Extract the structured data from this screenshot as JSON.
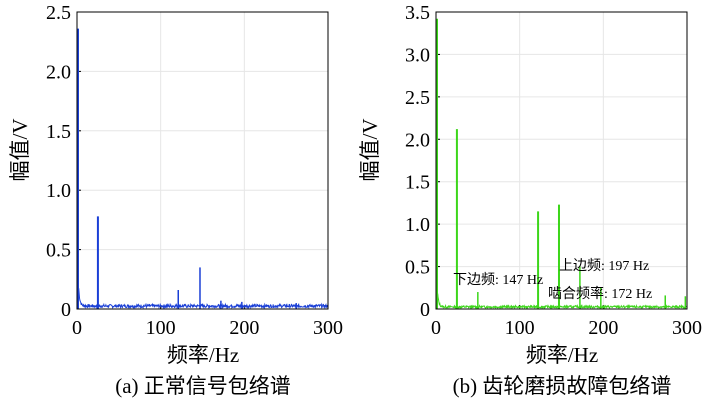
{
  "chart_data": [
    {
      "type": "line",
      "caption": "(a) 正常信号包络谱",
      "xlabel": "频率/Hz",
      "ylabel": "幅值/V",
      "xlim": [
        0,
        300
      ],
      "ylim": [
        0,
        2.5
      ],
      "xticks": [
        "0",
        "100",
        "200",
        "300"
      ],
      "yticks": [
        "0",
        "0.5",
        "1.0",
        "1.5",
        "2.0",
        "2.5"
      ],
      "grid": true,
      "color": "#1a3fd6",
      "noise_floor": 0.03,
      "peaks": [
        {
          "x": 0,
          "y": 2.36
        },
        {
          "x": 25,
          "y": 0.78
        },
        {
          "x": 121,
          "y": 0.16
        },
        {
          "x": 147,
          "y": 0.35
        },
        {
          "x": 172,
          "y": 0.07
        },
        {
          "x": 197,
          "y": 0.06
        },
        {
          "x": 262,
          "y": 0.05
        }
      ],
      "annotations": []
    },
    {
      "type": "line",
      "caption": "(b) 齿轮磨损故障包络谱",
      "xlabel": "频率/Hz",
      "ylabel": "幅值/V",
      "xlim": [
        0,
        300
      ],
      "ylim": [
        0,
        3.5
      ],
      "xticks": [
        "0",
        "100",
        "200",
        "300"
      ],
      "yticks": [
        "0",
        "0.5",
        "1.0",
        "1.5",
        "2.0",
        "2.5",
        "3.0",
        "3.5"
      ],
      "grid": true,
      "color": "#3cd61a",
      "noise_floor": 0.03,
      "peaks": [
        {
          "x": 0,
          "y": 3.42
        },
        {
          "x": 25,
          "y": 2.12
        },
        {
          "x": 50,
          "y": 0.2
        },
        {
          "x": 122,
          "y": 1.15
        },
        {
          "x": 147,
          "y": 1.23
        },
        {
          "x": 172,
          "y": 0.5
        },
        {
          "x": 197,
          "y": 0.25
        },
        {
          "x": 274,
          "y": 0.16
        },
        {
          "x": 298,
          "y": 0.15
        }
      ],
      "annotations": [
        {
          "text": "下边频: 147 Hz"
        },
        {
          "text": "上边频: 197 Hz"
        },
        {
          "text": "啮合频率: 172 Hz"
        }
      ]
    }
  ]
}
